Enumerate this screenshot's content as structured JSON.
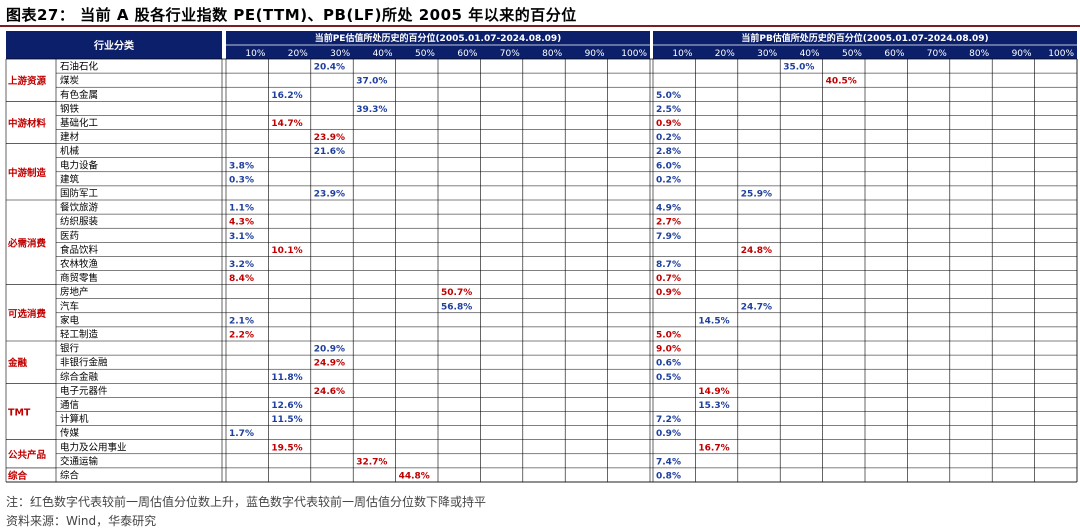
{
  "title": "图表27：  当前 A 股各行业指数 PE(TTM)、PB(LF)所处 2005 年以来的百分位",
  "note": "注：红色数字代表较前一周估值分位数上升，蓝色数字代表较前一周估值分位数下降或持平",
  "source": "资料来源：Wind，华泰研究",
  "colors": {
    "header_bg": "#0b1f6b",
    "up": "#c00000",
    "down": "#1f3f9c",
    "grid": "#000000",
    "group_text": "#c00000"
  },
  "chart_data": {
    "type": "table",
    "category_header": "行业分类",
    "panels": [
      {
        "title": "当前PE估值所处历史的百分位(2005.01.07-2024.08.09)",
        "ticks": [
          "10%",
          "20%",
          "30%",
          "40%",
          "50%",
          "60%",
          "70%",
          "80%",
          "90%",
          "100%"
        ]
      },
      {
        "title": "当前PB估值所处历史的百分位(2005.01.07-2024.08.09)",
        "ticks": [
          "10%",
          "20%",
          "30%",
          "40%",
          "50%",
          "60%",
          "70%",
          "80%",
          "90%",
          "100%"
        ]
      }
    ],
    "groups": [
      {
        "name": "上游资源",
        "rows": [
          {
            "industry": "石油石化",
            "pe": 20.4,
            "pe_label": "20.4%",
            "pe_dir": "down",
            "pb": 35.0,
            "pb_label": "35.0%",
            "pb_dir": "down"
          },
          {
            "industry": "煤炭",
            "pe": 37.0,
            "pe_label": "37.0%",
            "pe_dir": "down",
            "pb": 40.5,
            "pb_label": "40.5%",
            "pb_dir": "up"
          },
          {
            "industry": "有色金属",
            "pe": 16.2,
            "pe_label": "16.2%",
            "pe_dir": "down",
            "pb": 5.0,
            "pb_label": "5.0%",
            "pb_dir": "down"
          }
        ]
      },
      {
        "name": "中游材料",
        "rows": [
          {
            "industry": "钢铁",
            "pe": 39.3,
            "pe_label": "39.3%",
            "pe_dir": "down",
            "pb": 2.5,
            "pb_label": "2.5%",
            "pb_dir": "down"
          },
          {
            "industry": "基础化工",
            "pe": 14.7,
            "pe_label": "14.7%",
            "pe_dir": "up",
            "pb": 0.9,
            "pb_label": "0.9%",
            "pb_dir": "up"
          },
          {
            "industry": "建材",
            "pe": 23.9,
            "pe_label": "23.9%",
            "pe_dir": "up",
            "pb": 0.2,
            "pb_label": "0.2%",
            "pb_dir": "down"
          }
        ]
      },
      {
        "name": "中游制造",
        "rows": [
          {
            "industry": "机械",
            "pe": 21.6,
            "pe_label": "21.6%",
            "pe_dir": "down",
            "pb": 2.8,
            "pb_label": "2.8%",
            "pb_dir": "down"
          },
          {
            "industry": "电力设备",
            "pe": 3.8,
            "pe_label": "3.8%",
            "pe_dir": "down",
            "pb": 6.0,
            "pb_label": "6.0%",
            "pb_dir": "down"
          },
          {
            "industry": "建筑",
            "pe": 0.3,
            "pe_label": "0.3%",
            "pe_dir": "down",
            "pb": 0.2,
            "pb_label": "0.2%",
            "pb_dir": "down"
          },
          {
            "industry": "国防军工",
            "pe": 23.9,
            "pe_label": "23.9%",
            "pe_dir": "down",
            "pb": 25.9,
            "pb_label": "25.9%",
            "pb_dir": "down"
          }
        ]
      },
      {
        "name": "必需消费",
        "rows": [
          {
            "industry": "餐饮旅游",
            "pe": 1.1,
            "pe_label": "1.1%",
            "pe_dir": "down",
            "pb": 4.9,
            "pb_label": "4.9%",
            "pb_dir": "down"
          },
          {
            "industry": "纺织服装",
            "pe": 4.3,
            "pe_label": "4.3%",
            "pe_dir": "up",
            "pb": 2.7,
            "pb_label": "2.7%",
            "pb_dir": "up"
          },
          {
            "industry": "医药",
            "pe": 3.1,
            "pe_label": "3.1%",
            "pe_dir": "down",
            "pb": 7.9,
            "pb_label": "7.9%",
            "pb_dir": "down"
          },
          {
            "industry": "食品饮料",
            "pe": 10.1,
            "pe_label": "10.1%",
            "pe_dir": "up",
            "pb": 24.8,
            "pb_label": "24.8%",
            "pb_dir": "up"
          },
          {
            "industry": "农林牧渔",
            "pe": 3.2,
            "pe_label": "3.2%",
            "pe_dir": "down",
            "pb": 8.7,
            "pb_label": "8.7%",
            "pb_dir": "down"
          },
          {
            "industry": "商贸零售",
            "pe": 8.4,
            "pe_label": "8.4%",
            "pe_dir": "up",
            "pb": 0.7,
            "pb_label": "0.7%",
            "pb_dir": "up"
          }
        ]
      },
      {
        "name": "可选消费",
        "rows": [
          {
            "industry": "房地产",
            "pe": 50.7,
            "pe_label": "50.7%",
            "pe_dir": "up",
            "pb": 0.9,
            "pb_label": "0.9%",
            "pb_dir": "up"
          },
          {
            "industry": "汽车",
            "pe": 56.8,
            "pe_label": "56.8%",
            "pe_dir": "down",
            "pb": 24.7,
            "pb_label": "24.7%",
            "pb_dir": "down"
          },
          {
            "industry": "家电",
            "pe": 2.1,
            "pe_label": "2.1%",
            "pe_dir": "down",
            "pb": 14.5,
            "pb_label": "14.5%",
            "pb_dir": "down"
          },
          {
            "industry": "轻工制造",
            "pe": 2.2,
            "pe_label": "2.2%",
            "pe_dir": "up",
            "pb": 5.0,
            "pb_label": "5.0%",
            "pb_dir": "up"
          }
        ]
      },
      {
        "name": "金融",
        "rows": [
          {
            "industry": "银行",
            "pe": 20.9,
            "pe_label": "20.9%",
            "pe_dir": "down",
            "pb": 9.0,
            "pb_label": "9.0%",
            "pb_dir": "up"
          },
          {
            "industry": "非银行金融",
            "pe": 24.9,
            "pe_label": "24.9%",
            "pe_dir": "up",
            "pb": 0.6,
            "pb_label": "0.6%",
            "pb_dir": "down"
          },
          {
            "industry": "综合金融",
            "pe": 11.8,
            "pe_label": "11.8%",
            "pe_dir": "down",
            "pb": 0.5,
            "pb_label": "0.5%",
            "pb_dir": "down"
          }
        ]
      },
      {
        "name": "TMT",
        "rows": [
          {
            "industry": "电子元器件",
            "pe": 24.6,
            "pe_label": "24.6%",
            "pe_dir": "up",
            "pb": 14.9,
            "pb_label": "14.9%",
            "pb_dir": "up"
          },
          {
            "industry": "通信",
            "pe": 12.6,
            "pe_label": "12.6%",
            "pe_dir": "down",
            "pb": 15.3,
            "pb_label": "15.3%",
            "pb_dir": "down"
          },
          {
            "industry": "计算机",
            "pe": 11.5,
            "pe_label": "11.5%",
            "pe_dir": "down",
            "pb": 7.2,
            "pb_label": "7.2%",
            "pb_dir": "down"
          },
          {
            "industry": "传媒",
            "pe": 1.7,
            "pe_label": "1.7%",
            "pe_dir": "down",
            "pb": 0.9,
            "pb_label": "0.9%",
            "pb_dir": "down"
          }
        ]
      },
      {
        "name": "公共产品",
        "rows": [
          {
            "industry": "电力及公用事业",
            "pe": 19.5,
            "pe_label": "19.5%",
            "pe_dir": "up",
            "pb": 16.7,
            "pb_label": "16.7%",
            "pb_dir": "up"
          },
          {
            "industry": "交通运输",
            "pe": 32.7,
            "pe_label": "32.7%",
            "pe_dir": "up",
            "pb": 7.4,
            "pb_label": "7.4%",
            "pb_dir": "down"
          }
        ]
      },
      {
        "name": "综合",
        "rows": [
          {
            "industry": "综合",
            "pe": 44.8,
            "pe_label": "44.8%",
            "pe_dir": "up",
            "pb": 0.8,
            "pb_label": "0.8%",
            "pb_dir": "down"
          }
        ]
      }
    ]
  }
}
